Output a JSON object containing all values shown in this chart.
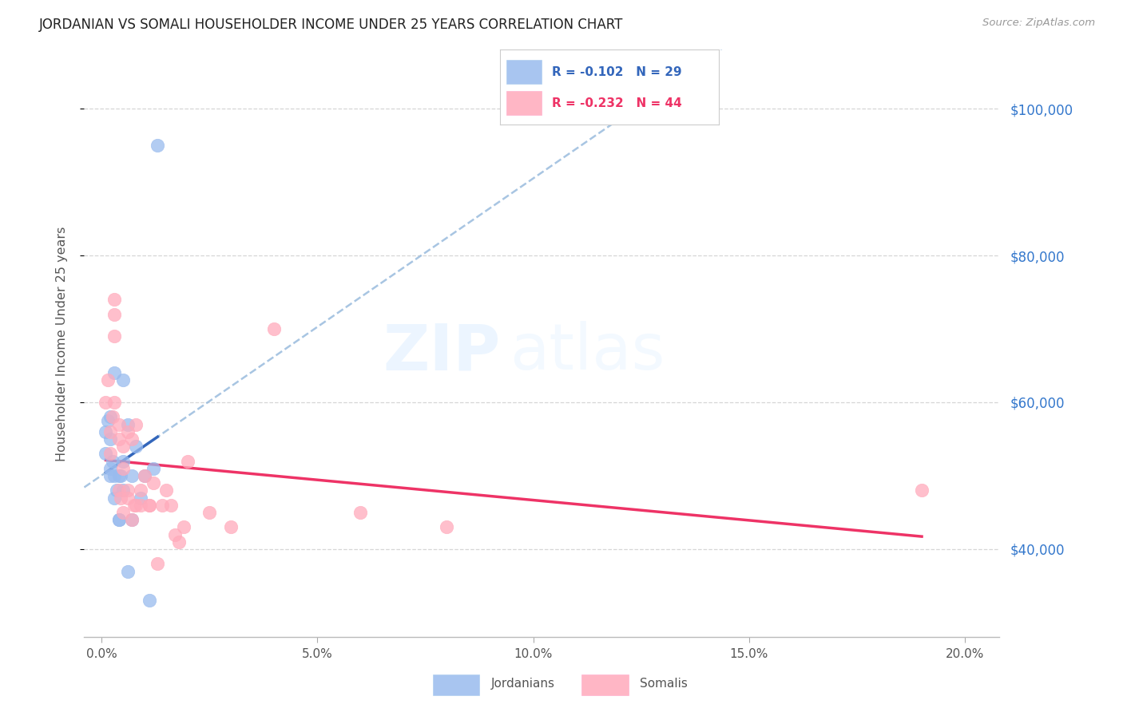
{
  "title": "JORDANIAN VS SOMALI HOUSEHOLDER INCOME UNDER 25 YEARS CORRELATION CHART",
  "source": "Source: ZipAtlas.com",
  "ylabel": "Householder Income Under 25 years",
  "xlim": [
    -0.004,
    0.208
  ],
  "ylim": [
    28000,
    108000
  ],
  "ytick_positions": [
    40000,
    60000,
    80000,
    100000
  ],
  "ytick_labels": [
    "$40,000",
    "$60,000",
    "$80,000",
    "$100,000"
  ],
  "xtick_positions": [
    0.0,
    0.05,
    0.1,
    0.15,
    0.2
  ],
  "xtick_labels": [
    "0.0%",
    "5.0%",
    "10.0%",
    "15.0%",
    "20.0%"
  ],
  "jordan_r": "-0.102",
  "jordan_n": "29",
  "somali_r": "-0.232",
  "somali_n": "44",
  "jordan_scatter_color": "#99BBEE",
  "somali_scatter_color": "#FFAABB",
  "jordan_line_color": "#3366BB",
  "somali_line_color": "#EE3366",
  "jordan_dashed_color": "#99BBDD",
  "right_label_color": "#3377CC",
  "jordan_x": [
    0.001,
    0.001,
    0.0015,
    0.002,
    0.002,
    0.002,
    0.002,
    0.0025,
    0.003,
    0.003,
    0.003,
    0.0035,
    0.004,
    0.004,
    0.004,
    0.0045,
    0.005,
    0.005,
    0.005,
    0.006,
    0.006,
    0.007,
    0.007,
    0.008,
    0.009,
    0.01,
    0.011,
    0.012,
    0.013
  ],
  "jordan_y": [
    56000,
    53000,
    57500,
    51000,
    58000,
    55000,
    50000,
    52000,
    47000,
    50000,
    64000,
    48000,
    50000,
    44000,
    44000,
    50000,
    63000,
    52000,
    48000,
    37000,
    57000,
    50000,
    44000,
    54000,
    47000,
    50000,
    33000,
    51000,
    95000
  ],
  "somali_x": [
    0.001,
    0.0015,
    0.002,
    0.002,
    0.0025,
    0.003,
    0.003,
    0.003,
    0.003,
    0.004,
    0.004,
    0.004,
    0.0045,
    0.005,
    0.005,
    0.005,
    0.006,
    0.006,
    0.006,
    0.007,
    0.007,
    0.0075,
    0.008,
    0.008,
    0.009,
    0.009,
    0.01,
    0.011,
    0.011,
    0.012,
    0.013,
    0.014,
    0.015,
    0.016,
    0.017,
    0.018,
    0.019,
    0.02,
    0.025,
    0.03,
    0.04,
    0.06,
    0.08,
    0.19
  ],
  "somali_y": [
    60000,
    63000,
    56000,
    53000,
    58000,
    69000,
    74000,
    72000,
    60000,
    57000,
    48000,
    55000,
    47000,
    45000,
    51000,
    54000,
    48000,
    47000,
    56000,
    55000,
    44000,
    46000,
    46000,
    57000,
    46000,
    48000,
    50000,
    46000,
    46000,
    49000,
    38000,
    46000,
    48000,
    46000,
    42000,
    41000,
    43000,
    52000,
    45000,
    43000,
    70000,
    45000,
    43000,
    48000
  ]
}
